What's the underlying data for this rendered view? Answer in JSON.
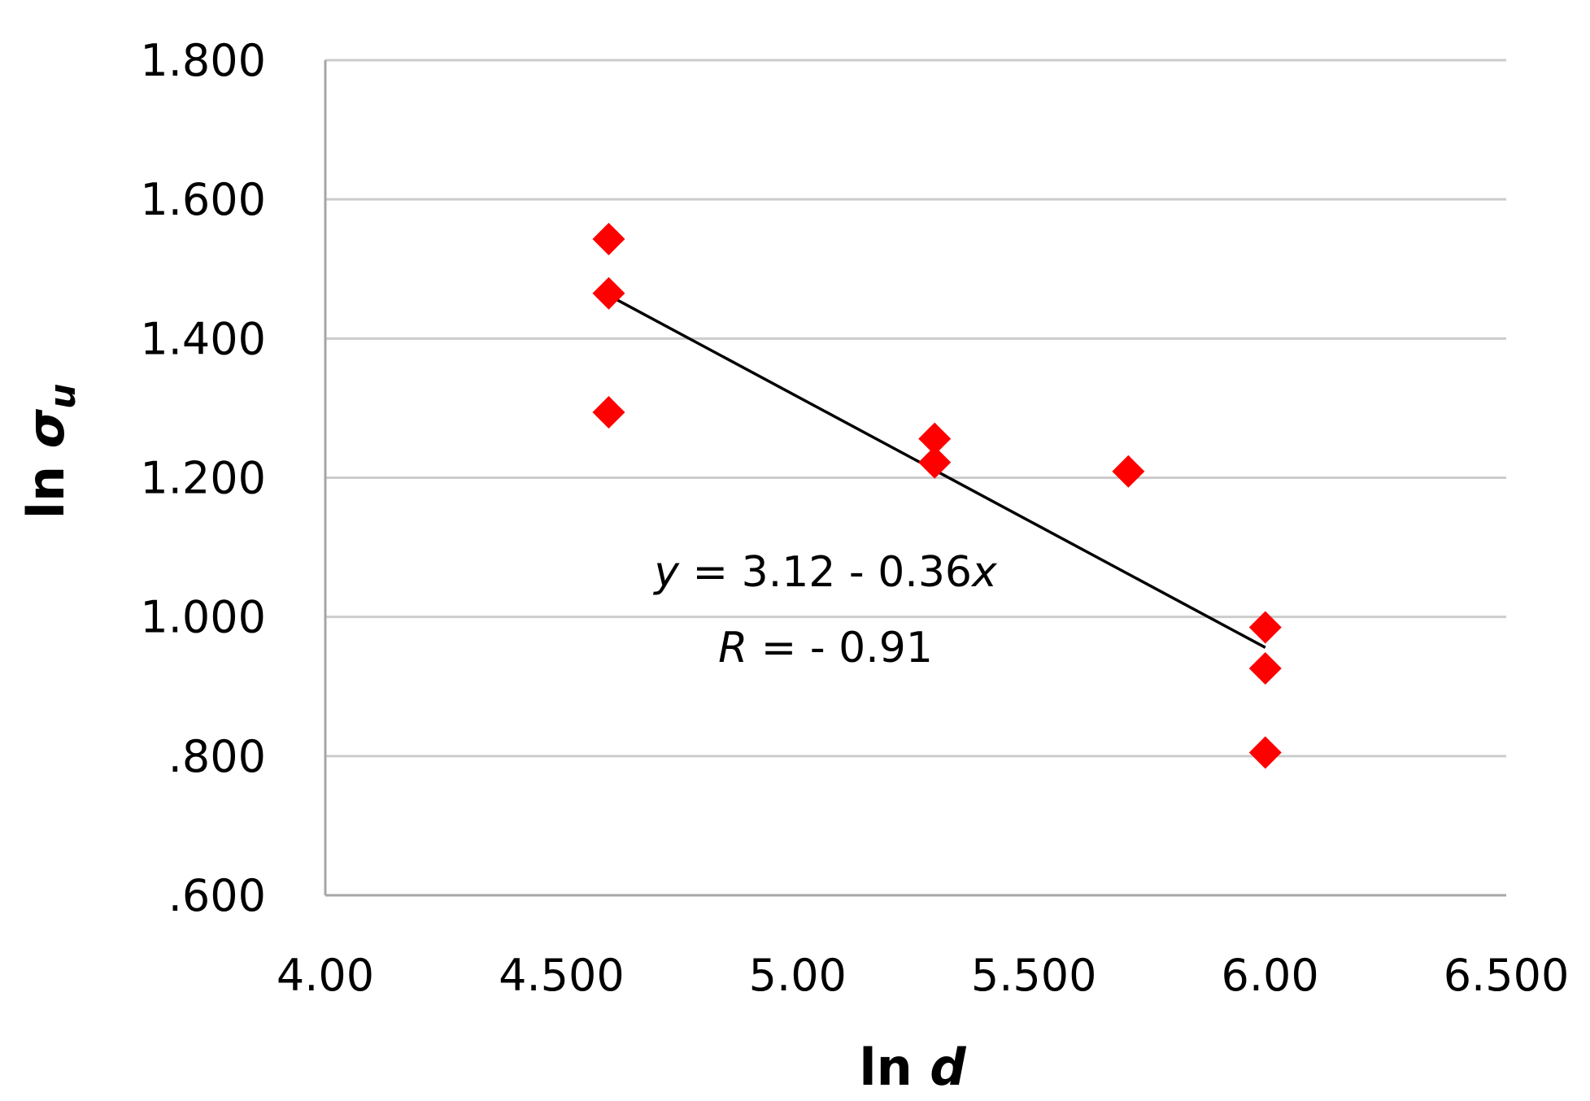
{
  "chart_data": {
    "type": "scatter",
    "title": "",
    "xlabel": {
      "prefix": "ln ",
      "var": "d"
    },
    "ylabel": {
      "prefix": "ln ",
      "var": "σ",
      "sub": "u"
    },
    "xlim": [
      4.0,
      6.5
    ],
    "ylim": [
      0.6,
      1.8
    ],
    "x_ticks": [
      4.0,
      4.5,
      5.0,
      5.5,
      6.0,
      6.5
    ],
    "x_tick_labels": [
      "4.00",
      "4.500",
      "5.00",
      "5.500",
      "6.00",
      "6.500"
    ],
    "y_ticks": [
      0.6,
      0.8,
      1.0,
      1.2,
      1.4,
      1.6,
      1.8
    ],
    "y_tick_labels": [
      ".600",
      ".800",
      "1.000",
      "1.200",
      "1.400",
      "1.600",
      "1.800"
    ],
    "grid": {
      "horizontal": true,
      "vertical": false
    },
    "legend": "none",
    "series": [
      {
        "marker": "diamond",
        "color": "#ff0000",
        "points": [
          {
            "x": 4.6,
            "y": 1.543
          },
          {
            "x": 4.6,
            "y": 1.465
          },
          {
            "x": 4.6,
            "y": 1.294
          },
          {
            "x": 5.29,
            "y": 1.256
          },
          {
            "x": 5.29,
            "y": 1.222
          },
          {
            "x": 5.7,
            "y": 1.209
          },
          {
            "x": 5.99,
            "y": 0.985
          },
          {
            "x": 5.99,
            "y": 0.926
          },
          {
            "x": 5.99,
            "y": 0.805
          }
        ]
      }
    ],
    "trendline": {
      "x": [
        4.6,
        5.99
      ],
      "y": [
        1.462,
        0.956
      ],
      "color": "#000000"
    },
    "annotations": {
      "equation": {
        "lhs": "y",
        "rest": " = 3.12 - 0.36",
        "var": "x"
      },
      "r_value": {
        "lhs": "R",
        "rest": " = - 0.91"
      }
    }
  }
}
